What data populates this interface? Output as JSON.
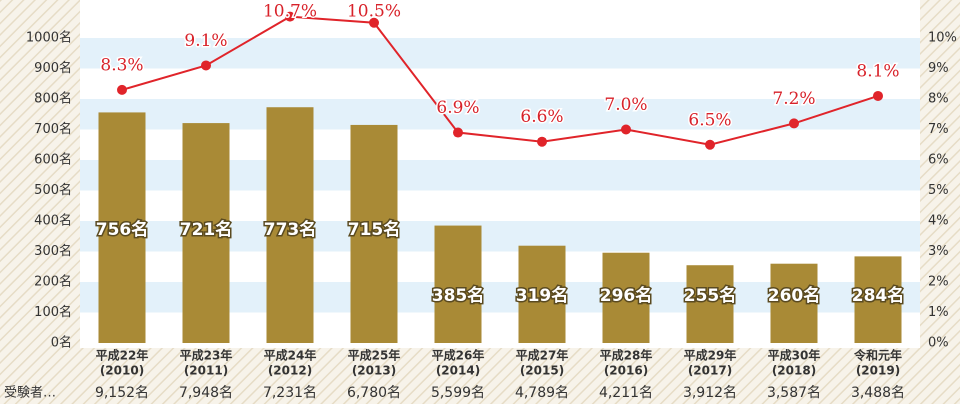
{
  "chart_data": {
    "type": "bar",
    "categories": [
      "平成22年",
      "平成23年",
      "平成24年",
      "平成25年",
      "平成26年",
      "平成27年",
      "平成28年",
      "平成29年",
      "平成30年",
      "令和元年"
    ],
    "x_sublabels": [
      "(2010)",
      "(2011)",
      "(2012)",
      "(2013)",
      "(2014)",
      "(2015)",
      "(2016)",
      "(2017)",
      "(2018)",
      "(2019)"
    ],
    "series": [
      {
        "type": "bar",
        "color": "#a98a36",
        "values": [
          756,
          721,
          773,
          715,
          385,
          319,
          296,
          255,
          260,
          284
        ],
        "value_labels": [
          "756名",
          "721名",
          "773名",
          "715名",
          "385名",
          "319名",
          "296名",
          "255名",
          "260名",
          "284名"
        ]
      },
      {
        "type": "line",
        "axis": "y2",
        "color": "#e0242a",
        "values": [
          8.3,
          9.1,
          10.7,
          10.5,
          6.9,
          6.6,
          7.0,
          6.5,
          7.2,
          8.1
        ],
        "value_labels": [
          "8.3%",
          "9.1%",
          "10.7%",
          "10.5%",
          "6.9%",
          "6.6%",
          "7.0%",
          "6.5%",
          "7.2%",
          "8.1%"
        ]
      }
    ],
    "applicants": {
      "label": "受験者…",
      "values": [
        9152,
        7948,
        7231,
        6780,
        5599,
        4789,
        4211,
        3912,
        3587,
        3488
      ],
      "value_labels": [
        "9,152名",
        "7,948名",
        "7,231名",
        "6,780名",
        "5,599名",
        "4,789名",
        "4,211名",
        "3,912名",
        "3,587名",
        "3,488名"
      ]
    },
    "ylim": [
      0,
      1000
    ],
    "yticks": [
      {
        "value": 0,
        "label": "0名"
      },
      {
        "value": 100,
        "label": "100名"
      },
      {
        "value": 200,
        "label": "200名"
      },
      {
        "value": 300,
        "label": "300名"
      },
      {
        "value": 400,
        "label": "400名"
      },
      {
        "value": 500,
        "label": "500名"
      },
      {
        "value": 600,
        "label": "600名"
      },
      {
        "value": 700,
        "label": "700名"
      },
      {
        "value": 800,
        "label": "800名"
      },
      {
        "value": 900,
        "label": "900名"
      },
      {
        "value": 1000,
        "label": "1000名"
      }
    ],
    "y2lim": [
      0,
      10
    ],
    "y2ticks": [
      {
        "value": 0,
        "label": "0%"
      },
      {
        "value": 1,
        "label": "1%"
      },
      {
        "value": 2,
        "label": "2%"
      },
      {
        "value": 3,
        "label": "3%"
      },
      {
        "value": 4,
        "label": "4%"
      },
      {
        "value": 5,
        "label": "5%"
      },
      {
        "value": 6,
        "label": "6%"
      },
      {
        "value": 7,
        "label": "7%"
      },
      {
        "value": 8,
        "label": "8%"
      },
      {
        "value": 9,
        "label": "9%"
      },
      {
        "value": 10,
        "label": "10%"
      }
    ],
    "band_color": "#e3f1fa"
  }
}
